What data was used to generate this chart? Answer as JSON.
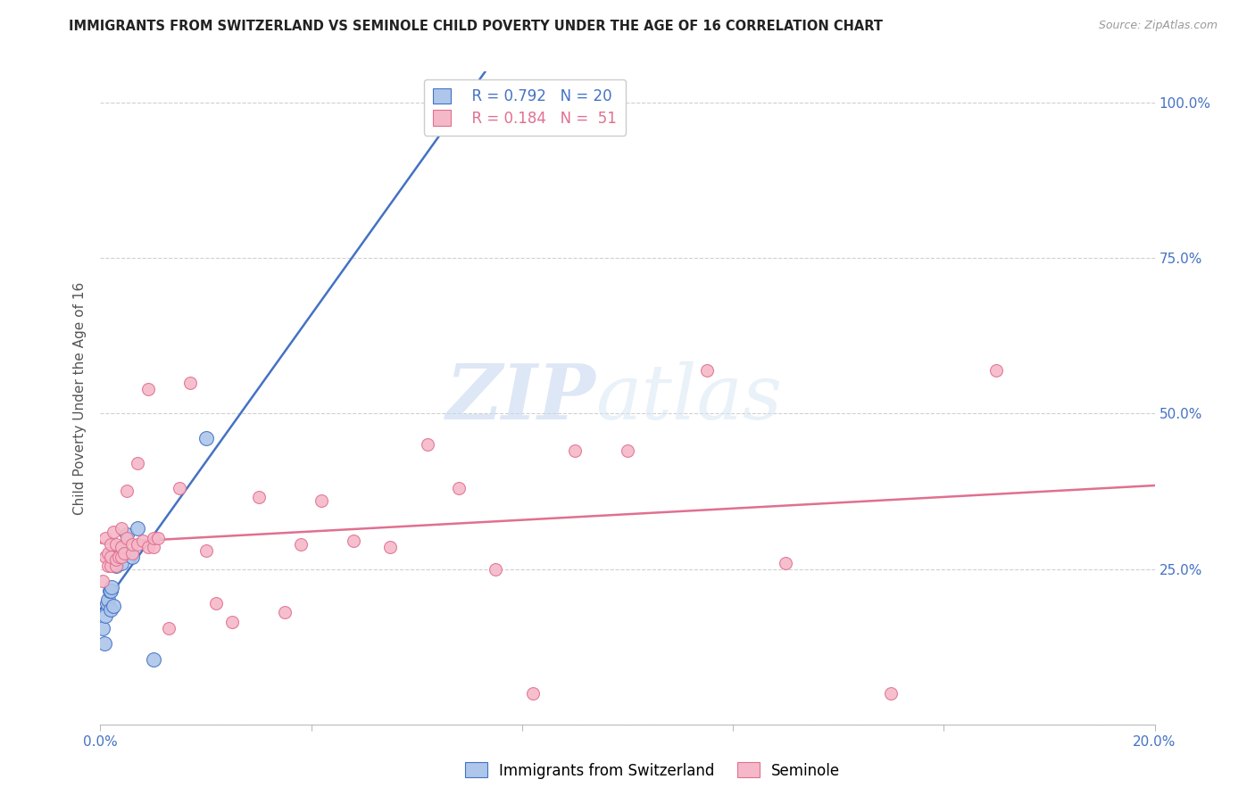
{
  "title": "IMMIGRANTS FROM SWITZERLAND VS SEMINOLE CHILD POVERTY UNDER THE AGE OF 16 CORRELATION CHART",
  "source": "Source: ZipAtlas.com",
  "ylabel": "Child Poverty Under the Age of 16",
  "watermark_zip": "ZIP",
  "watermark_atlas": "atlas",
  "legend_blue_r": "R = 0.792",
  "legend_blue_n": "N = 20",
  "legend_pink_r": "R = 0.184",
  "legend_pink_n": "N =  51",
  "legend_label_blue": "Immigrants from Switzerland",
  "legend_label_pink": "Seminole",
  "blue_color": "#adc6ea",
  "pink_color": "#f5b8c8",
  "blue_line_color": "#4472c4",
  "pink_line_color": "#e07090",
  "right_axis_color": "#4472c4",
  "title_color": "#222222",
  "xlim": [
    0.0,
    0.2
  ],
  "ylim": [
    0.0,
    1.05
  ],
  "blue_x": [
    0.0005,
    0.0008,
    0.001,
    0.0012,
    0.0015,
    0.0018,
    0.002,
    0.002,
    0.0022,
    0.0025,
    0.003,
    0.003,
    0.0035,
    0.004,
    0.004,
    0.005,
    0.006,
    0.007,
    0.01,
    0.02
  ],
  "blue_y": [
    0.155,
    0.13,
    0.175,
    0.195,
    0.2,
    0.215,
    0.185,
    0.215,
    0.22,
    0.19,
    0.255,
    0.265,
    0.27,
    0.26,
    0.28,
    0.305,
    0.27,
    0.315,
    0.105,
    0.46
  ],
  "pink_x": [
    0.0005,
    0.001,
    0.001,
    0.0015,
    0.0015,
    0.002,
    0.002,
    0.002,
    0.0025,
    0.003,
    0.003,
    0.003,
    0.0035,
    0.004,
    0.004,
    0.004,
    0.0045,
    0.005,
    0.005,
    0.006,
    0.006,
    0.007,
    0.007,
    0.008,
    0.009,
    0.009,
    0.01,
    0.01,
    0.011,
    0.013,
    0.015,
    0.017,
    0.02,
    0.022,
    0.025,
    0.03,
    0.035,
    0.038,
    0.042,
    0.048,
    0.055,
    0.062,
    0.068,
    0.075,
    0.082,
    0.09,
    0.1,
    0.115,
    0.13,
    0.15,
    0.17
  ],
  "pink_y": [
    0.23,
    0.27,
    0.3,
    0.255,
    0.275,
    0.255,
    0.27,
    0.29,
    0.31,
    0.255,
    0.265,
    0.29,
    0.27,
    0.27,
    0.285,
    0.315,
    0.275,
    0.3,
    0.375,
    0.275,
    0.29,
    0.29,
    0.42,
    0.295,
    0.285,
    0.54,
    0.285,
    0.3,
    0.3,
    0.155,
    0.38,
    0.55,
    0.28,
    0.195,
    0.165,
    0.365,
    0.18,
    0.29,
    0.36,
    0.295,
    0.285,
    0.45,
    0.38,
    0.25,
    0.05,
    0.44,
    0.44,
    0.57,
    0.26,
    0.05,
    0.57
  ],
  "blue_marker_size": 130,
  "pink_marker_size": 100,
  "figsize": [
    14.06,
    8.92
  ],
  "dpi": 100
}
